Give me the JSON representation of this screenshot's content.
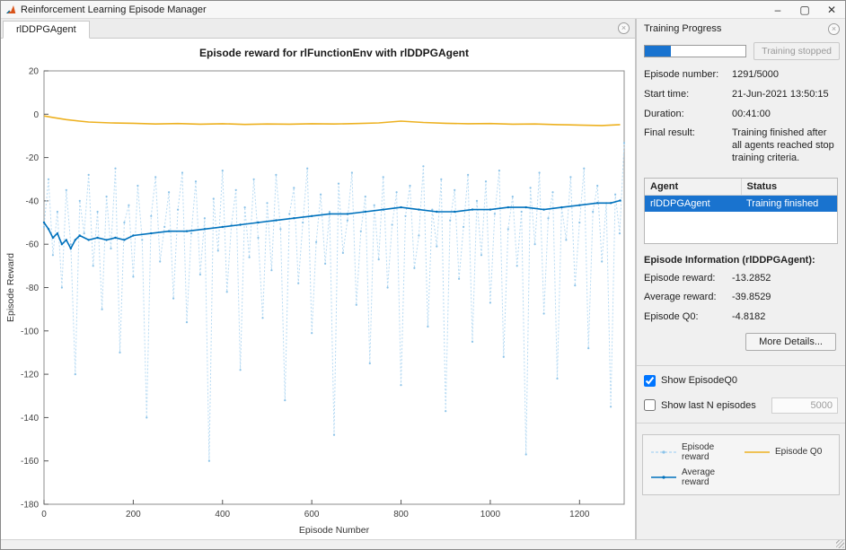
{
  "window": {
    "title": "Reinforcement Learning Episode Manager",
    "controls": {
      "minimize": "–",
      "maximize": "▢",
      "close": "✕"
    }
  },
  "colors": {
    "accent_blue": "#0072BD",
    "accent_orange": "#EDB120",
    "selection_blue": "#1973cf"
  },
  "tabs": [
    {
      "label": "rlDDPGAgent"
    }
  ],
  "training_progress": {
    "header": "Training Progress",
    "progress_percent": 25.8,
    "stop_button_label": "Training stopped",
    "fields": [
      {
        "label": "Episode number:",
        "value": "1291/5000"
      },
      {
        "label": "Start time:",
        "value": "21-Jun-2021 13:50:15"
      },
      {
        "label": "Duration:",
        "value": "00:41:00"
      },
      {
        "label": "Final result:",
        "value": "Training finished after all agents reached stop training criteria."
      }
    ],
    "agent_table": {
      "columns": [
        "Agent",
        "Status"
      ],
      "rows": [
        {
          "agent": "rlDDPGAgent",
          "status": "Training finished",
          "selected": true
        }
      ]
    },
    "episode_info": {
      "header": "Episode Information (rlDDPGAgent):",
      "fields": [
        {
          "label": "Episode reward:",
          "value": "-13.2852"
        },
        {
          "label": "Average reward:",
          "value": "-39.8529"
        },
        {
          "label": "Episode Q0:",
          "value": "-4.8182"
        }
      ],
      "more_details_label": "More Details..."
    },
    "options": {
      "show_episode_q0": {
        "label": "Show EpisodeQ0",
        "checked": true
      },
      "show_last_n": {
        "label": "Show last N episodes",
        "checked": false,
        "value": "5000"
      }
    },
    "legend": [
      {
        "label": "Episode reward",
        "series": 0
      },
      {
        "label": "Episode Q0",
        "series": 2
      },
      {
        "label": "Average reward",
        "series": 1
      }
    ]
  },
  "chart_data": {
    "type": "line",
    "title": "Episode reward for rlFunctionEnv with rlDDPGAgent",
    "xlabel": "Episode Number",
    "ylabel": "Episode Reward",
    "xlim": [
      0,
      1300
    ],
    "ylim": [
      -180,
      20
    ],
    "xticks": [
      0,
      200,
      400,
      600,
      800,
      1000,
      1200
    ],
    "yticks": [
      20,
      0,
      -20,
      -40,
      -60,
      -80,
      -100,
      -120,
      -140,
      -160,
      -180
    ],
    "grid": false,
    "series": [
      {
        "name": "Episode reward",
        "color": "#b6daf3",
        "marker": true,
        "marker_color": "#8cc3e8",
        "marker_r": 1.1,
        "width": 1,
        "dash": "2,2",
        "x_start": 0,
        "x_step": 10,
        "values": [
          -52,
          -30,
          -65,
          -45,
          -80,
          -35,
          -60,
          -120,
          -40,
          -55,
          -28,
          -70,
          -45,
          -90,
          -38,
          -62,
          -25,
          -110,
          -50,
          -42,
          -75,
          -33,
          -58,
          -140,
          -47,
          -29,
          -68,
          -52,
          -36,
          -85,
          -44,
          -27,
          -96,
          -55,
          -31,
          -74,
          -48,
          -160,
          -39,
          -63,
          -26,
          -82,
          -51,
          -35,
          -118,
          -43,
          -66,
          -30,
          -57,
          -94,
          -41,
          -72,
          -28,
          -53,
          -132,
          -46,
          -34,
          -78,
          -50,
          -25,
          -101,
          -59,
          -37,
          -69,
          -45,
          -148,
          -32,
          -64,
          -49,
          -27,
          -88,
          -54,
          -38,
          -115,
          -42,
          -67,
          -29,
          -80,
          -51,
          -36,
          -125,
          -47,
          -33,
          -71,
          -56,
          -24,
          -98,
          -44,
          -61,
          -30,
          -137,
          -49,
          -35,
          -76,
          -52,
          -28,
          -105,
          -40,
          -65,
          -31,
          -87,
          -46,
          -26,
          -112,
          -53,
          -38,
          -70,
          -45,
          -157,
          -34,
          -60,
          -27,
          -92,
          -48,
          -36,
          -122,
          -43,
          -58,
          -29,
          -79,
          -50,
          -25,
          -108,
          -45,
          -33,
          -68,
          -41,
          -135,
          -37,
          -55,
          -13.2852
        ]
      },
      {
        "name": "Average reward",
        "color": "#0072BD",
        "marker": true,
        "marker_r": 1.2,
        "width": 1.6,
        "points": [
          [
            0,
            -50
          ],
          [
            10,
            -53
          ],
          [
            20,
            -57
          ],
          [
            30,
            -55
          ],
          [
            40,
            -60
          ],
          [
            50,
            -58
          ],
          [
            60,
            -62
          ],
          [
            70,
            -58
          ],
          [
            80,
            -56
          ],
          [
            100,
            -58
          ],
          [
            120,
            -57
          ],
          [
            140,
            -58
          ],
          [
            160,
            -57
          ],
          [
            180,
            -58
          ],
          [
            200,
            -56
          ],
          [
            240,
            -55
          ],
          [
            280,
            -54
          ],
          [
            320,
            -54
          ],
          [
            360,
            -53
          ],
          [
            400,
            -52
          ],
          [
            440,
            -51
          ],
          [
            480,
            -50
          ],
          [
            520,
            -49
          ],
          [
            560,
            -48
          ],
          [
            600,
            -47
          ],
          [
            640,
            -46
          ],
          [
            680,
            -46
          ],
          [
            720,
            -45
          ],
          [
            760,
            -44
          ],
          [
            800,
            -43
          ],
          [
            840,
            -44
          ],
          [
            880,
            -45
          ],
          [
            920,
            -45
          ],
          [
            960,
            -44
          ],
          [
            1000,
            -44
          ],
          [
            1040,
            -43
          ],
          [
            1080,
            -43
          ],
          [
            1120,
            -44
          ],
          [
            1160,
            -43
          ],
          [
            1200,
            -42
          ],
          [
            1240,
            -41
          ],
          [
            1270,
            -41
          ],
          [
            1291,
            -39.8529
          ]
        ]
      },
      {
        "name": "Episode Q0",
        "color": "#EDB120",
        "marker": false,
        "width": 1.6,
        "points": [
          [
            0,
            -0.8
          ],
          [
            20,
            -1.5
          ],
          [
            50,
            -2.5
          ],
          [
            80,
            -3.2
          ],
          [
            100,
            -3.6
          ],
          [
            150,
            -4.0
          ],
          [
            200,
            -4.2
          ],
          [
            250,
            -4.5
          ],
          [
            300,
            -4.3
          ],
          [
            350,
            -4.6
          ],
          [
            400,
            -4.4
          ],
          [
            450,
            -4.7
          ],
          [
            500,
            -4.5
          ],
          [
            550,
            -4.6
          ],
          [
            600,
            -4.4
          ],
          [
            650,
            -4.5
          ],
          [
            700,
            -4.3
          ],
          [
            750,
            -4.0
          ],
          [
            800,
            -3.2
          ],
          [
            850,
            -3.8
          ],
          [
            900,
            -4.2
          ],
          [
            950,
            -4.4
          ],
          [
            1000,
            -4.3
          ],
          [
            1050,
            -4.6
          ],
          [
            1100,
            -4.5
          ],
          [
            1150,
            -4.8
          ],
          [
            1200,
            -5.0
          ],
          [
            1250,
            -5.2
          ],
          [
            1291,
            -4.8182
          ]
        ]
      }
    ]
  }
}
